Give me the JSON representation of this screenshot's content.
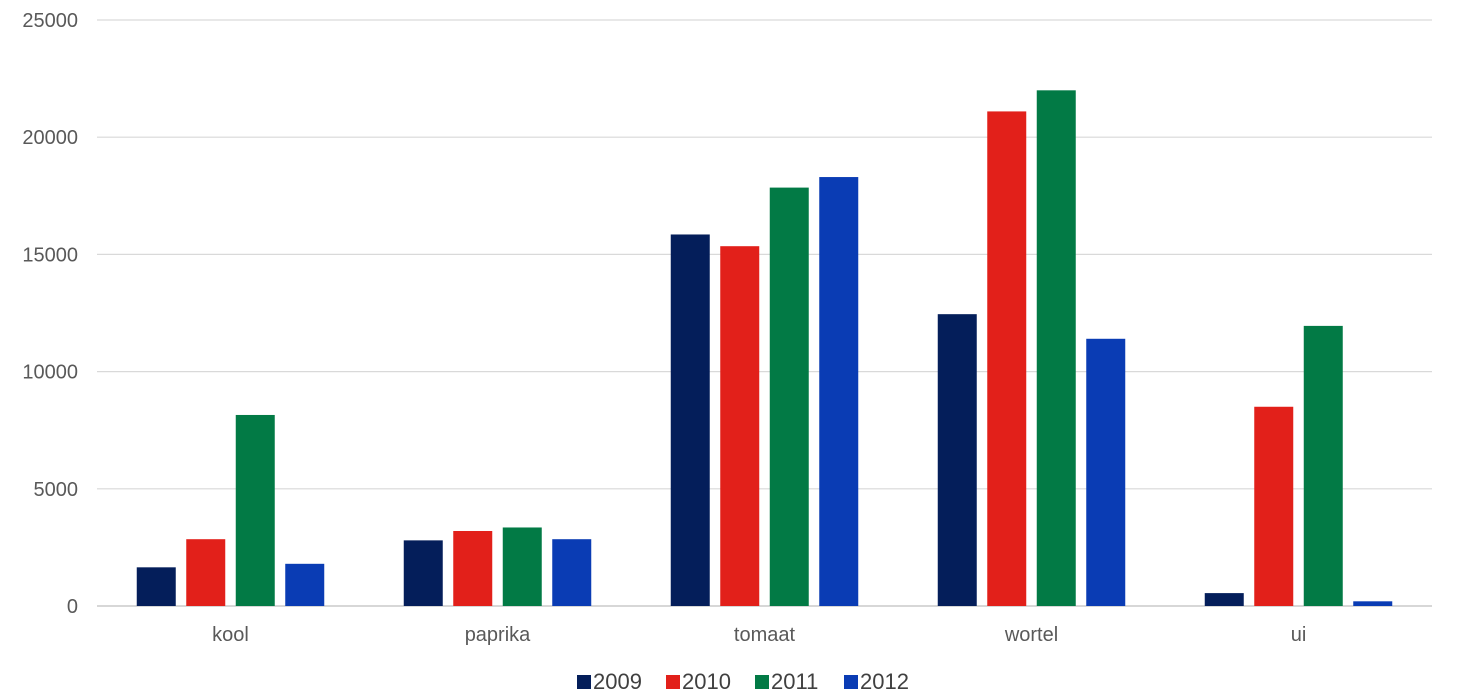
{
  "chart_data": {
    "type": "bar",
    "title": "",
    "xlabel": "",
    "ylabel": "",
    "categories": [
      "kool",
      "paprika",
      "tomaat",
      "wortel",
      "ui"
    ],
    "ylim": [
      0,
      25000
    ],
    "yticks": [
      0,
      5000,
      10000,
      15000,
      20000,
      25000
    ],
    "grid": true,
    "legend_position": "bottom",
    "series": [
      {
        "name": "2009",
        "color": "#041E5A",
        "values": [
          1650,
          2800,
          15850,
          12450,
          550
        ]
      },
      {
        "name": "2010",
        "color": "#E2201A",
        "values": [
          2850,
          3200,
          15350,
          21100,
          8500
        ]
      },
      {
        "name": "2011",
        "color": "#027A45",
        "values": [
          8150,
          3350,
          17850,
          22000,
          11950
        ]
      },
      {
        "name": "2012",
        "color": "#0A3CB4",
        "values": [
          1800,
          2850,
          18300,
          11400,
          200
        ]
      }
    ]
  }
}
